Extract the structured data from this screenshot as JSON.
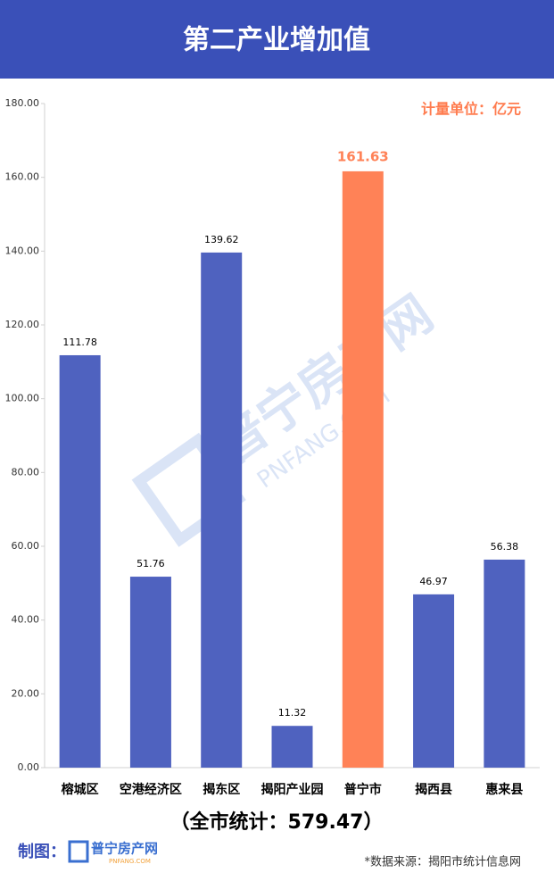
{
  "chart_data": {
    "type": "bar",
    "title": "第二产业增加值",
    "unit_note": "计量单位：亿元",
    "categories": [
      "榕城区",
      "空港经济区",
      "揭东区",
      "揭阳产业园",
      "普宁市",
      "揭西县",
      "惠来县"
    ],
    "values": [
      111.78,
      51.76,
      139.62,
      11.32,
      161.63,
      46.97,
      56.38
    ],
    "colors": [
      "#4f62bf",
      "#4f62bf",
      "#4f62bf",
      "#4f62bf",
      "#ff8257",
      "#4f62bf",
      "#4f62bf"
    ],
    "ylim": [
      0,
      180
    ],
    "yticks": [
      {
        "value": 0,
        "label": "0.00"
      },
      {
        "value": 20,
        "label": "20.00"
      },
      {
        "value": 40,
        "label": "40.00"
      },
      {
        "value": 60,
        "label": "60.00"
      },
      {
        "value": 80,
        "label": "80.00"
      },
      {
        "value": 100,
        "label": "100.00"
      },
      {
        "value": 120,
        "label": "120.00"
      },
      {
        "value": 140,
        "label": "140.00"
      },
      {
        "value": 160,
        "label": "160.00"
      },
      {
        "value": 180,
        "label": "180.00"
      }
    ],
    "total_note": "（全市统计：579.47）",
    "credit_label": "制图：",
    "logo_name": "普宁房产网",
    "logo_domain": "PNFANG.COM",
    "source": "*数据来源：揭阳市统计信息网"
  }
}
